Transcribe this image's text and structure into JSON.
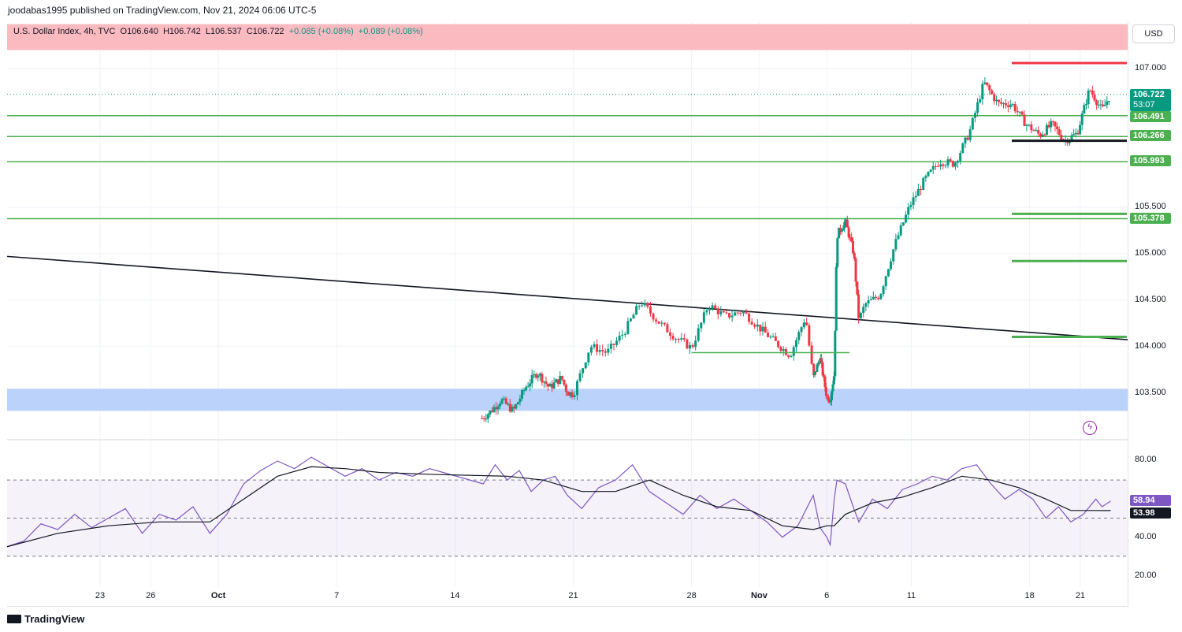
{
  "header": {
    "published": "joodabas1995 published on TradingView.com, Nov 21, 2024 06:06 UTC-5"
  },
  "legend": {
    "symbol": "U.S. Dollar Index, 4h, TVC",
    "open": "O106.640",
    "high": "H106.742",
    "low": "L106.537",
    "close": "C106.722",
    "change1": "+0.085 (+0.08%)",
    "change2": "+0.089 (+0.08%)"
  },
  "currency_button": "USD",
  "footer": {
    "brand": "TradingView"
  },
  "colors": {
    "up": "#089981",
    "down": "#f23645",
    "support_line": "#4caf50",
    "resistance_zone": "#fbb9c0",
    "support_zone": "#bbd3fb",
    "rsi": "#7e57c2"
  },
  "chart_data": {
    "type": "candlestick",
    "timeframe": "4h",
    "price_axis": {
      "range": [
        103.1,
        107.5
      ],
      "ticks": [
        "107.000",
        "105.500",
        "105.000",
        "104.500",
        "104.000",
        "103.500"
      ]
    },
    "date_ticks": [
      {
        "label": "23",
        "day": 23
      },
      {
        "label": "26",
        "day": 26
      },
      {
        "label": "Oct",
        "day": 30,
        "bold": true
      },
      {
        "label": "7",
        "day": 37
      },
      {
        "label": "14",
        "day": 44
      },
      {
        "label": "21",
        "day": 51
      },
      {
        "label": "28",
        "day": 58
      },
      {
        "label": "Nov",
        "day": 62,
        "bold": true
      },
      {
        "label": "6",
        "day": 66
      },
      {
        "label": "11",
        "day": 71
      },
      {
        "label": "18",
        "day": 78
      },
      {
        "label": "21",
        "day": 81
      }
    ],
    "day_range": [
      17.5,
      83.8
    ],
    "price_labels": [
      {
        "value": 106.722,
        "text": "106.722",
        "countdown": "53:07",
        "style": "green"
      },
      {
        "value": 106.491,
        "text": "106.491",
        "style": "line"
      },
      {
        "value": 106.266,
        "text": "106.266",
        "style": "line"
      },
      {
        "value": 105.993,
        "text": "105.993",
        "style": "line"
      },
      {
        "value": 105.378,
        "text": "105.378",
        "style": "line"
      }
    ],
    "horizontal_lines": [
      106.491,
      106.266,
      105.993,
      105.378
    ],
    "zones": [
      {
        "name": "resistance",
        "from": 107.2,
        "to": 107.48
      },
      {
        "name": "support",
        "from": 103.3,
        "to": 103.54
      }
    ],
    "trendline": {
      "start": {
        "day": 17.5,
        "price": 104.97
      },
      "end": {
        "day": 83.8,
        "price": 104.07
      }
    },
    "short_segments": [
      {
        "day_from": 58.0,
        "day_to": 70.5,
        "price": 103.93,
        "color": "#4caf50"
      },
      {
        "day_from": 77.7,
        "day_to": 84.0,
        "price": 107.06,
        "color": "#f23645"
      },
      {
        "day_from": 77.7,
        "day_to": 84.0,
        "price": 106.22,
        "color": "#131722"
      },
      {
        "day_from": 77.7,
        "day_to": 84.0,
        "price": 105.43,
        "color": "#4caf50"
      },
      {
        "day_from": 77.7,
        "day_to": 84.0,
        "price": 104.92,
        "color": "#4caf50"
      },
      {
        "day_from": 77.7,
        "day_to": 84.0,
        "price": 104.1,
        "color": "#4caf50"
      }
    ],
    "close_path": [
      [
        43.4,
        103.22
      ],
      [
        44.0,
        103.28
      ],
      [
        45.0,
        103.42
      ],
      [
        46.0,
        103.3
      ],
      [
        47.0,
        103.55
      ],
      [
        48.0,
        103.72
      ],
      [
        49.0,
        103.55
      ],
      [
        50.0,
        103.66
      ],
      [
        50.5,
        103.5
      ],
      [
        51.0,
        103.48
      ],
      [
        52.0,
        104.0
      ],
      [
        53.0,
        103.93
      ],
      [
        54.0,
        104.15
      ],
      [
        55.0,
        104.48
      ],
      [
        56.0,
        104.27
      ],
      [
        57.0,
        104.1
      ],
      [
        58.0,
        103.98
      ],
      [
        59.0,
        104.45
      ],
      [
        60.0,
        104.32
      ],
      [
        61.0,
        104.38
      ],
      [
        62.0,
        104.2
      ],
      [
        63.0,
        104.05
      ],
      [
        64.0,
        103.9
      ],
      [
        65.0,
        104.32
      ],
      [
        65.5,
        103.65
      ],
      [
        66.5,
        103.88
      ],
      [
        67.5,
        103.45
      ],
      [
        68.0,
        103.43
      ],
      [
        68.6,
        103.7
      ],
      [
        69.0,
        105.2
      ],
      [
        70.0,
        105.35
      ],
      [
        71.0,
        105.0
      ],
      [
        71.6,
        104.28
      ],
      [
        72.0,
        104.45
      ],
      [
        73.0,
        104.55
      ],
      [
        74.0,
        105.1
      ],
      [
        75.0,
        105.52
      ],
      [
        76.0,
        105.8
      ],
      [
        77.0,
        106.0
      ],
      [
        78.0,
        105.97
      ],
      [
        79.0,
        106.3
      ],
      [
        80.0,
        106.85
      ],
      [
        81.0,
        106.62
      ],
      [
        82.0,
        106.62
      ],
      [
        83.0,
        106.4
      ],
      [
        84.0,
        106.28
      ],
      [
        85.0,
        106.4
      ],
      [
        86.0,
        106.22
      ],
      [
        87.0,
        106.3
      ],
      [
        88.0,
        106.78
      ],
      [
        89.0,
        106.55
      ],
      [
        89.7,
        106.722
      ]
    ],
    "rsi": {
      "ticks": [
        "80.00",
        "40.00",
        "20.00"
      ],
      "range": [
        14,
        88
      ],
      "band": [
        30,
        70
      ],
      "midline": 50,
      "value_label": "58.94",
      "ma_label": "53.98",
      "rsi_path": [
        [
          17.5,
          35
        ],
        [
          18.5,
          38
        ],
        [
          19.5,
          47
        ],
        [
          20.5,
          44
        ],
        [
          21.5,
          52
        ],
        [
          22.5,
          45
        ],
        [
          23.5,
          50
        ],
        [
          24.5,
          55
        ],
        [
          25.5,
          42
        ],
        [
          26.5,
          52
        ],
        [
          27.5,
          49
        ],
        [
          28.5,
          56
        ],
        [
          29.5,
          42
        ],
        [
          30.5,
          52
        ],
        [
          31.5,
          68
        ],
        [
          32.5,
          75
        ],
        [
          33.5,
          80
        ],
        [
          34.5,
          76
        ],
        [
          35.5,
          82
        ],
        [
          36.5,
          77
        ],
        [
          37.5,
          72
        ],
        [
          38.5,
          76
        ],
        [
          39.5,
          70
        ],
        [
          40.5,
          74
        ],
        [
          41.5,
          72
        ],
        [
          42.5,
          76
        ],
        [
          43.5,
          68
        ],
        [
          44.5,
          78
        ],
        [
          45.5,
          70
        ],
        [
          46.5,
          75
        ],
        [
          47.5,
          64
        ],
        [
          48.5,
          70
        ],
        [
          49.5,
          72
        ],
        [
          50.5,
          62
        ],
        [
          51.5,
          55
        ],
        [
          52.5,
          66
        ],
        [
          53.5,
          70
        ],
        [
          54.5,
          78
        ],
        [
          55.5,
          64
        ],
        [
          56.5,
          58
        ],
        [
          57.5,
          52
        ],
        [
          58.5,
          62
        ],
        [
          59.5,
          55
        ],
        [
          60.5,
          60
        ],
        [
          61.5,
          54
        ],
        [
          62.5,
          48
        ],
        [
          63.5,
          40
        ],
        [
          64.5,
          46
        ],
        [
          65.5,
          62
        ],
        [
          66.5,
          45
        ],
        [
          67.5,
          40
        ],
        [
          68.0,
          36
        ],
        [
          68.6,
          60
        ],
        [
          69.0,
          70
        ],
        [
          70.0,
          68
        ],
        [
          71.0,
          55
        ],
        [
          71.6,
          48
        ],
        [
          72.5,
          60
        ],
        [
          73.5,
          55
        ],
        [
          74.5,
          65
        ],
        [
          75.5,
          68
        ],
        [
          76.5,
          72
        ],
        [
          77.5,
          70
        ],
        [
          78.5,
          76
        ],
        [
          79.5,
          78
        ],
        [
          80.5,
          68
        ],
        [
          81.5,
          60
        ],
        [
          82.5,
          65
        ],
        [
          83.5,
          60
        ],
        [
          84.5,
          50
        ],
        [
          85.5,
          56
        ],
        [
          86.5,
          48
        ],
        [
          87.5,
          52
        ],
        [
          88.5,
          60
        ],
        [
          89.0,
          56
        ],
        [
          89.7,
          58.94
        ]
      ],
      "ma_path": [
        [
          17.5,
          35
        ],
        [
          20.5,
          42
        ],
        [
          23.5,
          46
        ],
        [
          26.5,
          48
        ],
        [
          29.5,
          48
        ],
        [
          31.5,
          60
        ],
        [
          33.5,
          72
        ],
        [
          35.5,
          77
        ],
        [
          37.5,
          76
        ],
        [
          39.5,
          74
        ],
        [
          42.5,
          73
        ],
        [
          45.5,
          72
        ],
        [
          48.5,
          70
        ],
        [
          51.5,
          64
        ],
        [
          53.5,
          64
        ],
        [
          55.5,
          70
        ],
        [
          57.5,
          62
        ],
        [
          59.5,
          56
        ],
        [
          61.5,
          54
        ],
        [
          63.5,
          46
        ],
        [
          65.5,
          44
        ],
        [
          67.5,
          46
        ],
        [
          68.6,
          46
        ],
        [
          70.0,
          52
        ],
        [
          72.5,
          58
        ],
        [
          74.5,
          61
        ],
        [
          76.5,
          66
        ],
        [
          78.5,
          72
        ],
        [
          80.5,
          70
        ],
        [
          82.5,
          66
        ],
        [
          84.5,
          60
        ],
        [
          86.5,
          54
        ],
        [
          88.5,
          54
        ],
        [
          89.7,
          53.98
        ]
      ]
    }
  }
}
